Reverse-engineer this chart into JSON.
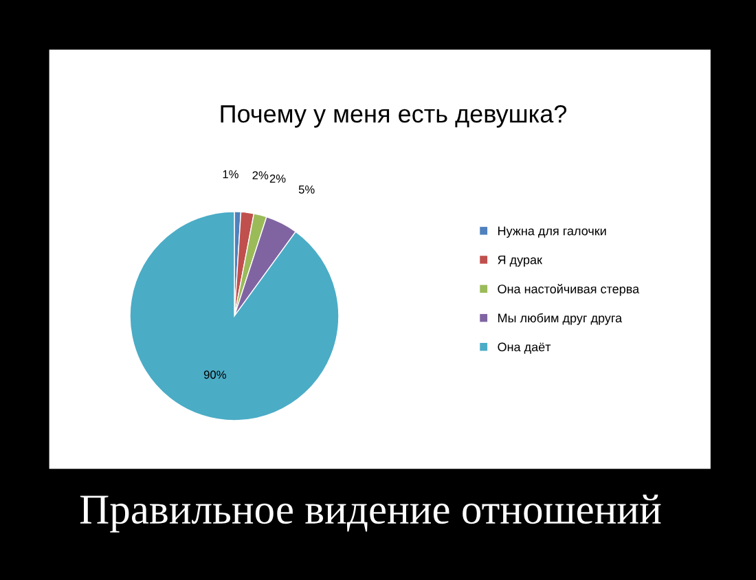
{
  "chart_data": {
    "type": "pie",
    "title": "Почему у меня есть девушка?",
    "categories": [
      "Нужна для галочки",
      "Я дурак",
      "Она настойчивая стерва",
      "Мы любим друг друга",
      "Она даёт"
    ],
    "values": [
      1,
      2,
      2,
      5,
      90
    ],
    "colors": [
      "#4f81bd",
      "#c0504d",
      "#9bbb59",
      "#8064a2",
      "#4bacc6"
    ],
    "value_labels": [
      "1%",
      "2%",
      "2%",
      "5%",
      "90%"
    ],
    "legend": "right",
    "annotations": [
      "Правильное видение отношений"
    ]
  }
}
